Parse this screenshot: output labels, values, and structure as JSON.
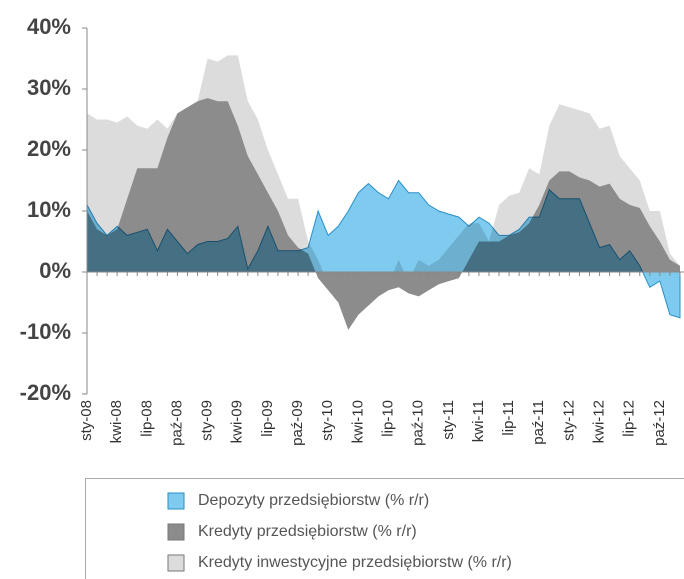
{
  "chart_data": {
    "type": "area",
    "categories": [
      "sty-08",
      null,
      null,
      "kwi-08",
      null,
      null,
      "lip-08",
      null,
      null,
      "paź-08",
      null,
      null,
      "sty-09",
      null,
      null,
      "kwi-09",
      null,
      null,
      "lip-09",
      null,
      null,
      "paź-09",
      null,
      null,
      "sty-10",
      null,
      null,
      "kwi-10",
      null,
      null,
      "lip-10",
      null,
      null,
      "paź-10",
      null,
      null,
      "sty-11",
      null,
      null,
      "kwi-11",
      null,
      null,
      "lip-11",
      null,
      null,
      "paź-11",
      null,
      null,
      "sty-12",
      null,
      null,
      "kwi-12",
      null,
      null,
      "lip-12",
      null,
      null,
      "paź-12",
      null,
      null
    ],
    "ylim": [
      -20,
      40
    ],
    "yticks": [
      {
        "value": -20,
        "label": "-20%"
      },
      {
        "value": -10,
        "label": "-10%"
      },
      {
        "value": 0,
        "label": "0%"
      },
      {
        "value": 10,
        "label": "10%"
      },
      {
        "value": 20,
        "label": "20%"
      },
      {
        "value": 30,
        "label": "30%"
      },
      {
        "value": 40,
        "label": "40%"
      }
    ],
    "series": [
      {
        "name": "Kredyty inwestycyjne przedsiębiorstw (% r/r)",
        "color": "#dcdcdc",
        "values": [
          26,
          25,
          25,
          24.5,
          25.5,
          24,
          23.5,
          25,
          23.5,
          26,
          27,
          28,
          35,
          34.5,
          35.5,
          35.5,
          28,
          25,
          20,
          16,
          12,
          12,
          5,
          2,
          -2,
          -4,
          -7,
          -5,
          -4,
          -3,
          -2,
          2,
          -1.5,
          2,
          1,
          2,
          4,
          6,
          8,
          8,
          5,
          11,
          12.5,
          13,
          17,
          16,
          24,
          27.5,
          27,
          26.5,
          26,
          23.5,
          24,
          19,
          17,
          15,
          10,
          10,
          3,
          1
        ]
      },
      {
        "name": "Kredyty przedsiębiorstw (% r/r)",
        "color": "#8c8c8c",
        "values": [
          10,
          7,
          6,
          7,
          12,
          17,
          17,
          17,
          22,
          26,
          27,
          28,
          28.5,
          28,
          28,
          24,
          19,
          16,
          13,
          10,
          6,
          4,
          3,
          -1,
          -3,
          -5,
          -9.5,
          -7,
          -5.5,
          -4,
          -3,
          -2.5,
          -3.5,
          -4,
          -3,
          -2,
          -1.5,
          -1,
          2,
          5,
          5,
          5,
          6,
          6.5,
          8,
          11,
          15,
          16.5,
          16.5,
          15.5,
          15,
          14,
          14.5,
          12,
          11,
          10.5,
          7.5,
          5,
          2,
          1
        ]
      },
      {
        "name": "Depozyty przedsiębiorstw (% r/r)",
        "color": "#7ecbef",
        "values": [
          11,
          8,
          6,
          7.5,
          6,
          6.5,
          7,
          3.5,
          7,
          5,
          3,
          4.5,
          5,
          5,
          5.5,
          7.5,
          0.5,
          3.5,
          7.5,
          3.5,
          3.5,
          3.5,
          4,
          10,
          6,
          7.5,
          10,
          13,
          14.5,
          13,
          12,
          15,
          13,
          13,
          11,
          10,
          9.5,
          9,
          7.5,
          9,
          8,
          6,
          6,
          7,
          9,
          9,
          13.5,
          12,
          12,
          12,
          8,
          4,
          4.5,
          2,
          3.5,
          1,
          -2.5,
          -1.5,
          -7,
          -7.5
        ]
      }
    ]
  }
}
